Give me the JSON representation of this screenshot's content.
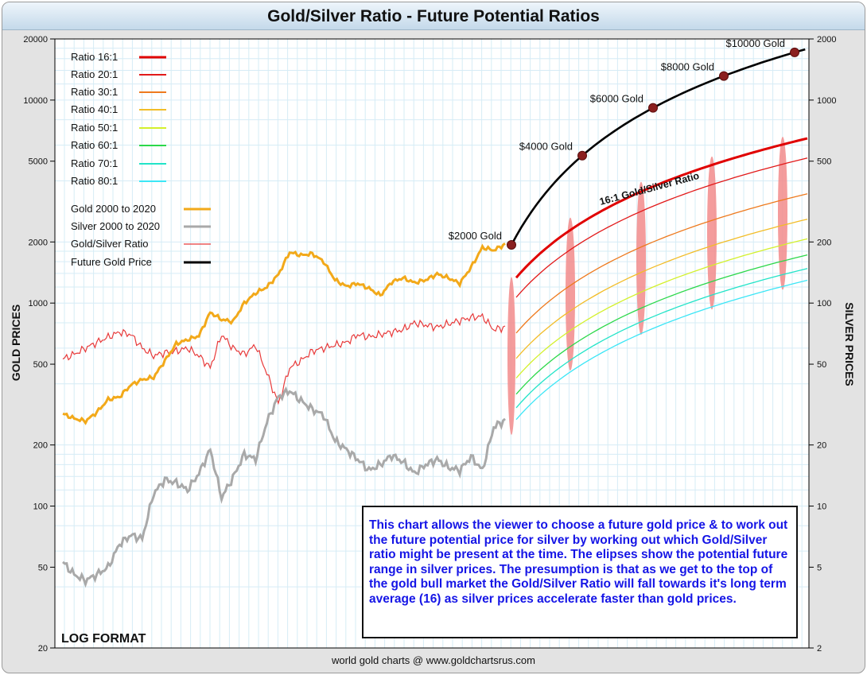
{
  "title": "Gold/Silver Ratio - Future Potential Ratios",
  "footer": "world gold charts @ www.goldchartsrus.com",
  "format_label": "LOG FORMAT",
  "note": "This chart allows the viewer to choose a future gold price & to work out the future potential price for silver by working out which Gold/Silver ratio might be present at the time. The elipses show the potential future range in silver prices. The presumption is that as we get to the top of the gold bull market the Gold/Silver Ratio will fall towards it's long term average (16) as silver prices accelerate faster than gold prices.",
  "chart_data": {
    "type": "line",
    "title": "Gold/Silver Ratio - Future Potential Ratios",
    "y_left": {
      "label": "GOLD PRICES",
      "scale": "log",
      "range": [
        20,
        20000
      ],
      "ticks": [
        "20000",
        "10000",
        "5000",
        "2000",
        "1000",
        "500",
        "200",
        "100",
        "50",
        "20"
      ]
    },
    "y_right": {
      "label": "SILVER PRICES",
      "scale": "log",
      "range": [
        2,
        2000
      ],
      "ticks": [
        "2000",
        "1000",
        "500",
        "200",
        "100",
        "50",
        "20",
        "10",
        "5",
        "2"
      ]
    },
    "grid": true,
    "legend_position": "top-left",
    "legend": [
      {
        "name": "Ratio 16:1",
        "color": "#e00000"
      },
      {
        "name": "Ratio 20:1",
        "color": "#e21a1a"
      },
      {
        "name": "Ratio 30:1",
        "color": "#ee7a1e"
      },
      {
        "name": "Ratio 40:1",
        "color": "#f2bd28"
      },
      {
        "name": "Ratio 50:1",
        "color": "#d4f02c"
      },
      {
        "name": "Ratio 60:1",
        "color": "#2cd84a"
      },
      {
        "name": "Ratio 70:1",
        "color": "#22e4c8"
      },
      {
        "name": "Ratio 80:1",
        "color": "#3ce6f6"
      },
      {
        "name": "Gold 2000 to 2020",
        "color": "#f2a91a"
      },
      {
        "name": "Silver 2000 to 2020",
        "color": "#a9a9a9"
      },
      {
        "name": "Gold/Silver Ratio",
        "color": "#e83a3a"
      },
      {
        "name": "Future Gold Price",
        "color": "#000000"
      }
    ],
    "future_gold_points": [
      {
        "label": "$2000 Gold",
        "value": 2000
      },
      {
        "label": "$4000 Gold",
        "value": 4000
      },
      {
        "label": "$6000 Gold",
        "value": 6000
      },
      {
        "label": "$8000 Gold",
        "value": 8000
      },
      {
        "label": "$10000 Gold",
        "value": 10000
      }
    ],
    "ratio_16_label": "16:1 Gold/Silver Ratio",
    "future_ratios": [
      16,
      20,
      30,
      40,
      50,
      60,
      70,
      80
    ],
    "silver_ranges_at_points": [
      {
        "gold": 2000,
        "low": 25,
        "high": 125
      },
      {
        "gold": 4000,
        "low": 50,
        "high": 250
      },
      {
        "gold": 6000,
        "low": 75,
        "high": 375
      },
      {
        "gold": 8000,
        "low": 100,
        "high": 500
      },
      {
        "gold": 10000,
        "low": 125,
        "high": 625
      }
    ],
    "gold_history": [
      285,
      270,
      262,
      290,
      335,
      345,
      395,
      420,
      430,
      520,
      630,
      660,
      690,
      900,
      830,
      810,
      1000,
      1120,
      1200,
      1380,
      1780,
      1720,
      1750,
      1600,
      1300,
      1210,
      1250,
      1180,
      1090,
      1270,
      1330,
      1260,
      1300,
      1390,
      1330,
      1250,
      1500,
      1880,
      1820,
      1950
    ],
    "silver_history": [
      5.3,
      4.6,
      4.3,
      4.6,
      5.0,
      6.5,
      7.2,
      6.9,
      11.5,
      13.5,
      13.0,
      12.0,
      14.5,
      19.0,
      11.0,
      13.8,
      18.0,
      17.0,
      26.0,
      34.5,
      37.0,
      33.0,
      30.0,
      28.0,
      21.0,
      19.0,
      17.0,
      15.0,
      16.0,
      17.8,
      16.5,
      14.5,
      16.0,
      17.0,
      15.5,
      15.0,
      17.5,
      15.0,
      24.5,
      26.5
    ],
    "ratio_history": [
      53,
      56,
      60,
      64,
      68,
      72,
      70,
      60,
      55,
      57,
      58,
      60,
      55,
      48,
      70,
      60,
      56,
      62,
      45,
      32,
      48,
      52,
      58,
      60,
      62,
      64,
      70,
      68,
      70,
      72,
      74,
      80,
      78,
      76,
      79,
      82,
      85,
      86,
      74,
      76
    ]
  }
}
